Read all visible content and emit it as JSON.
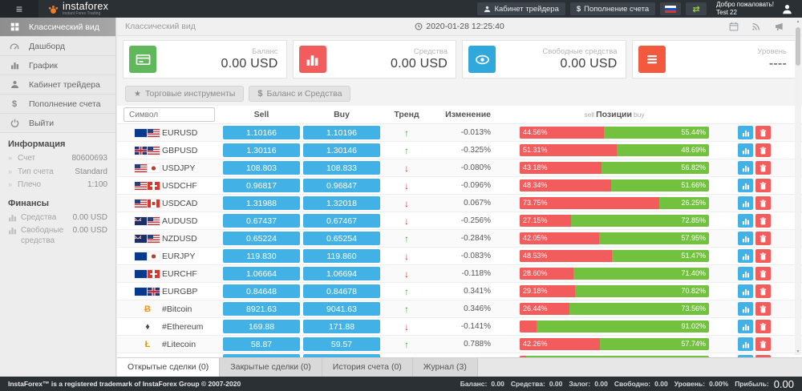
{
  "app": {
    "logo_text": "instaforex",
    "logo_subtitle": "Instant Forex Trading",
    "nav_trader_cabinet": "Кабинет трейдера",
    "nav_deposit_symbol": "$",
    "nav_deposit": "Пополнение счета",
    "welcome_line1": "Добро пожаловать!",
    "welcome_line2": "Test 22"
  },
  "sidebar": {
    "menu": [
      {
        "label": "Классический вид",
        "icon": "grid",
        "active": true
      },
      {
        "label": "Дашборд",
        "icon": "gauge",
        "active": false
      },
      {
        "label": "График",
        "icon": "bars",
        "active": false
      },
      {
        "label": "Кабинет трейдера",
        "icon": "person",
        "active": false
      },
      {
        "label": "Пополнение счета",
        "icon": "dollar",
        "active": false
      },
      {
        "label": "Выйти",
        "icon": "power",
        "active": false
      }
    ],
    "info_title": "Информация",
    "info_items": [
      {
        "label": "Счет",
        "value": "80600693"
      },
      {
        "label": "Тип счета",
        "value": "Standard"
      },
      {
        "label": "Плечо",
        "value": "1:100"
      }
    ],
    "finance_title": "Финансы",
    "finance_items": [
      {
        "label": "Средства",
        "value": "0.00 USD",
        "icon": "bars"
      },
      {
        "label": "Свободные средства",
        "value": "0.00 USD",
        "icon": "bars"
      }
    ]
  },
  "topbar": {
    "title": "Классический вид",
    "datetime": "2020-01-28 12:25:40"
  },
  "cards": [
    {
      "label": "Баланс",
      "value": "0.00 USD",
      "icon": "credit-card",
      "color": "#5fb95a"
    },
    {
      "label": "Средства",
      "value": "0.00 USD",
      "icon": "bar-chart",
      "color": "#f25c5c"
    },
    {
      "label": "Свободные средства",
      "value": "0.00 USD",
      "icon": "eye",
      "color": "#2fa8dc"
    },
    {
      "label": "Уровень",
      "value": "----",
      "icon": "list",
      "color": "#f2593d"
    }
  ],
  "filters": [
    {
      "label": "Торговые инструменты",
      "icon": "star"
    },
    {
      "label": "Баланс и Средства",
      "icon": "dollar"
    }
  ],
  "table": {
    "search_placeholder": "Символ",
    "col_sell": "Sell",
    "col_buy": "Buy",
    "col_trend": "Тренд",
    "col_change": "Изменение",
    "col_pos_left": "sell",
    "col_pos_mid": "Позиции",
    "col_pos_right": "buy",
    "rows": [
      {
        "symbol": "EURUSD",
        "icons": [
          {
            "type": "flag",
            "code": "eu"
          },
          {
            "type": "flag",
            "code": "us"
          }
        ],
        "sell": "1.10166",
        "buy": "1.10196",
        "trend": "up",
        "change": "-0.013%",
        "sell_pct": 44.56,
        "sell_label": "44.56%",
        "buy_label": "55.44%"
      },
      {
        "symbol": "GBPUSD",
        "icons": [
          {
            "type": "flag",
            "code": "gb"
          },
          {
            "type": "flag",
            "code": "us"
          }
        ],
        "sell": "1.30116",
        "buy": "1.30146",
        "trend": "up",
        "change": "-0.325%",
        "sell_pct": 51.31,
        "sell_label": "51.31%",
        "buy_label": "48.69%"
      },
      {
        "symbol": "USDJPY",
        "icons": [
          {
            "type": "flag",
            "code": "us"
          },
          {
            "type": "flag",
            "code": "jp"
          }
        ],
        "sell": "108.803",
        "buy": "108.833",
        "trend": "down",
        "change": "-0.080%",
        "sell_pct": 43.18,
        "sell_label": "43.18%",
        "buy_label": "56.82%"
      },
      {
        "symbol": "USDCHF",
        "icons": [
          {
            "type": "flag",
            "code": "us"
          },
          {
            "type": "flag",
            "code": "ch"
          }
        ],
        "sell": "0.96817",
        "buy": "0.96847",
        "trend": "down",
        "change": "-0.096%",
        "sell_pct": 48.34,
        "sell_label": "48.34%",
        "buy_label": "51.66%"
      },
      {
        "symbol": "USDCAD",
        "icons": [
          {
            "type": "flag",
            "code": "us"
          },
          {
            "type": "flag",
            "code": "ca"
          }
        ],
        "sell": "1.31988",
        "buy": "1.32018",
        "trend": "down",
        "change": "0.067%",
        "sell_pct": 73.75,
        "sell_label": "73.75%",
        "buy_label": "26.25%"
      },
      {
        "symbol": "AUDUSD",
        "icons": [
          {
            "type": "flag",
            "code": "au"
          },
          {
            "type": "flag",
            "code": "us"
          }
        ],
        "sell": "0.67437",
        "buy": "0.67467",
        "trend": "down",
        "change": "-0.256%",
        "sell_pct": 27.15,
        "sell_label": "27.15%",
        "buy_label": "72.85%"
      },
      {
        "symbol": "NZDUSD",
        "icons": [
          {
            "type": "flag",
            "code": "nz"
          },
          {
            "type": "flag",
            "code": "us"
          }
        ],
        "sell": "0.65224",
        "buy": "0.65254",
        "trend": "up",
        "change": "-0.284%",
        "sell_pct": 42.05,
        "sell_label": "42.05%",
        "buy_label": "57.95%"
      },
      {
        "symbol": "EURJPY",
        "icons": [
          {
            "type": "flag",
            "code": "eu"
          },
          {
            "type": "flag",
            "code": "jp"
          }
        ],
        "sell": "119.830",
        "buy": "119.860",
        "trend": "down",
        "change": "-0.083%",
        "sell_pct": 48.53,
        "sell_label": "48.53%",
        "buy_label": "51.47%"
      },
      {
        "symbol": "EURCHF",
        "icons": [
          {
            "type": "flag",
            "code": "eu"
          },
          {
            "type": "flag",
            "code": "ch"
          }
        ],
        "sell": "1.06664",
        "buy": "1.06694",
        "trend": "down",
        "change": "-0.118%",
        "sell_pct": 28.6,
        "sell_label": "28.60%",
        "buy_label": "71.40%"
      },
      {
        "symbol": "EURGBP",
        "icons": [
          {
            "type": "flag",
            "code": "eu"
          },
          {
            "type": "flag",
            "code": "gb"
          }
        ],
        "sell": "0.84648",
        "buy": "0.84678",
        "trend": "up",
        "change": "0.341%",
        "sell_pct": 29.18,
        "sell_label": "29.18%",
        "buy_label": "70.82%"
      },
      {
        "symbol": "#Bitcoin",
        "icons": [
          {
            "type": "crypto",
            "char": "Ƀ",
            "color": "#f7931a"
          }
        ],
        "sell": "8921.63",
        "buy": "9041.63",
        "trend": "up",
        "change": "0.346%",
        "sell_pct": 26.44,
        "sell_label": "26.44%",
        "buy_label": "73.56%"
      },
      {
        "symbol": "#Ethereum",
        "icons": [
          {
            "type": "crypto",
            "char": "♦",
            "color": "#4a4a4a"
          }
        ],
        "sell": "169.88",
        "buy": "171.88",
        "trend": "down",
        "change": "-0.141%",
        "sell_pct": 8.98,
        "sell_label": "",
        "buy_label": "91.02%"
      },
      {
        "symbol": "#Litecoin",
        "icons": [
          {
            "type": "crypto",
            "char": "Ł",
            "color": "#d4a017"
          }
        ],
        "sell": "58.87",
        "buy": "59.57",
        "trend": "up",
        "change": "0.788%",
        "sell_pct": 42.26,
        "sell_label": "42.26%",
        "buy_label": "57.74%"
      },
      {
        "symbol": "",
        "icons": [
          {
            "type": "crypto",
            "char": "×",
            "color": "#29abe2"
          }
        ],
        "sell": "",
        "buy": "",
        "trend": "down",
        "change": "",
        "sell_pct": 3.5,
        "sell_label": "",
        "buy_label": ""
      }
    ]
  },
  "tabs": [
    {
      "label": "Открытые сделки (0)",
      "active": true
    },
    {
      "label": "Закрытые сделки (0)",
      "active": false
    },
    {
      "label": "История счета (0)",
      "active": false
    },
    {
      "label": "Журнал (3)",
      "active": false
    }
  ],
  "footer": {
    "copyright": "InstaForex™ is a registered trademark of InstaForex Group © 2007-2020",
    "summary": [
      {
        "label": "Баланс:",
        "value": "0.00"
      },
      {
        "label": "Средства:",
        "value": "0.00"
      },
      {
        "label": "Залог:",
        "value": "0.00"
      },
      {
        "label": "Свободно:",
        "value": "0.00"
      },
      {
        "label": "Уровень:",
        "value": "0.00%"
      },
      {
        "label": "Прибыль:",
        "value": "0.00"
      }
    ]
  },
  "colors": {
    "accent_blue": "#41b1e6",
    "accent_red": "#f25c5c",
    "accent_green": "#72c13f",
    "trend_up": "#3fa33f",
    "trend_down": "#c0392b"
  }
}
